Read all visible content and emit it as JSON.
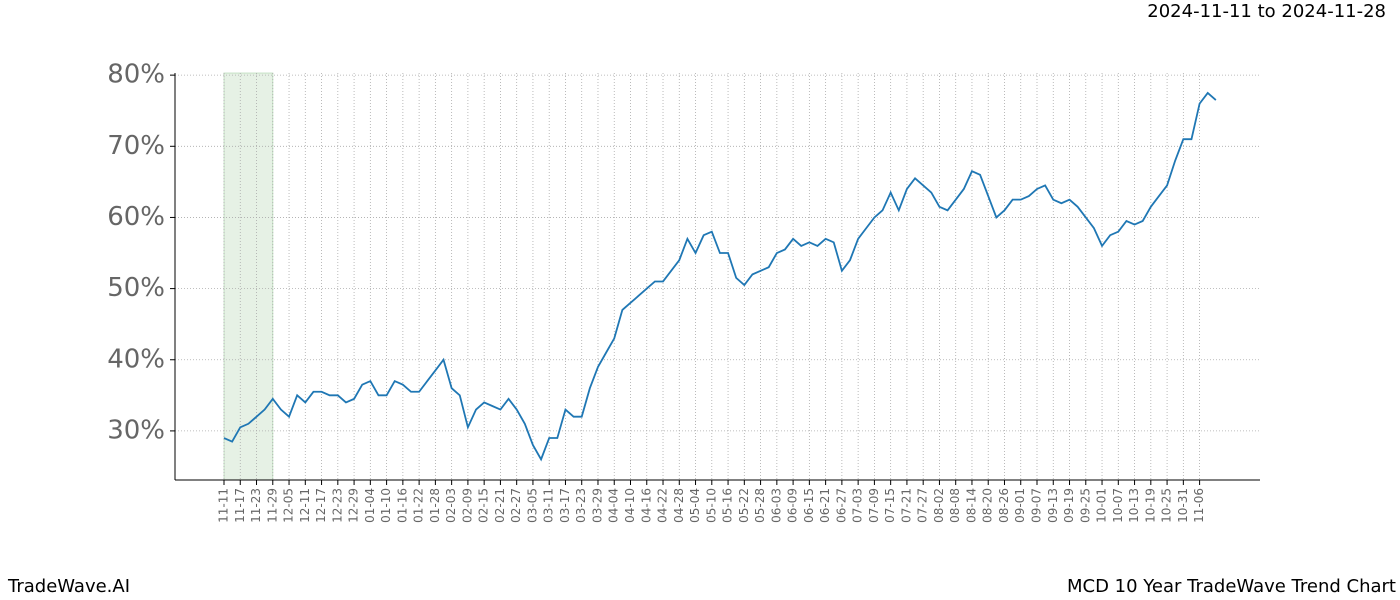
{
  "header": "2024-11-11 to 2024-11-28",
  "footer_left": "TradeWave.AI",
  "footer_right": "MCD 10 Year TradeWave Trend Chart",
  "chart_data": {
    "type": "line",
    "color": "#1f77b4",
    "grid": true,
    "shaded_span": [
      "11-11",
      "11-29"
    ],
    "shade_color": "#d5e8d4",
    "ylim": [
      23.1,
      80.3
    ],
    "yticks": [
      {
        "value": 30,
        "label": "30%"
      },
      {
        "value": 40,
        "label": "40%"
      },
      {
        "value": 50,
        "label": "50%"
      },
      {
        "value": 60,
        "label": "60%"
      },
      {
        "value": 70,
        "label": "70%"
      },
      {
        "value": 80,
        "label": "80%"
      }
    ],
    "categories": [
      "11-11",
      null,
      "11-17",
      null,
      "11-23",
      null,
      "11-29",
      null,
      "12-05",
      null,
      "12-11",
      null,
      "12-17",
      null,
      "12-23",
      null,
      "12-29",
      null,
      "01-04",
      null,
      "01-10",
      null,
      "01-16",
      null,
      "01-22",
      null,
      "01-28",
      null,
      "02-03",
      null,
      "02-09",
      null,
      "02-15",
      null,
      "02-21",
      null,
      "02-27",
      null,
      "03-05",
      null,
      "03-11",
      null,
      "03-17",
      null,
      "03-23",
      null,
      "03-29",
      null,
      "04-04",
      null,
      "04-10",
      null,
      "04-16",
      null,
      "04-22",
      null,
      "04-28",
      null,
      "05-04",
      null,
      "05-10",
      null,
      "05-16",
      null,
      "05-22",
      null,
      "05-28",
      null,
      "06-03",
      null,
      "06-09",
      null,
      "06-15",
      null,
      "06-21",
      null,
      "06-27",
      null,
      "07-03",
      null,
      "07-09",
      null,
      "07-15",
      null,
      "07-21",
      null,
      "07-27",
      null,
      "08-02",
      null,
      "08-08",
      null,
      "08-14",
      null,
      "08-20",
      null,
      "08-26",
      null,
      "09-01",
      null,
      "09-07",
      null,
      "09-13",
      null,
      "09-19",
      null,
      "09-25",
      null,
      "10-01",
      null,
      "10-07",
      null,
      "10-13",
      null,
      "10-19",
      null,
      "10-25",
      null,
      "10-31",
      null,
      "11-06",
      null,
      null
    ],
    "values": [
      29,
      28.5,
      30.5,
      31,
      32,
      33,
      34.5,
      33,
      32,
      35,
      34,
      35.5,
      35.5,
      35,
      35,
      34,
      34.5,
      36.5,
      37,
      35,
      35,
      37,
      36.5,
      35.5,
      35.5,
      37,
      38.5,
      40,
      36,
      35,
      30.5,
      33,
      34,
      33.5,
      33,
      34.5,
      33,
      31,
      28,
      26,
      29,
      29,
      33,
      32,
      32,
      36,
      39,
      41,
      43,
      47,
      48,
      49,
      50,
      51,
      51,
      52.5,
      54,
      57,
      55,
      57.5,
      58,
      55,
      55,
      51.5,
      50.5,
      52,
      52.5,
      53,
      55,
      55.5,
      57,
      56,
      56.5,
      56,
      57,
      56.5,
      52.5,
      54,
      57,
      58.5,
      60,
      61,
      63.5,
      61,
      64,
      65.5,
      64.5,
      63.5,
      61.5,
      61,
      62.5,
      64,
      66.5,
      66,
      63,
      60,
      61,
      62.5,
      62.5,
      63,
      64,
      64.5,
      62.5,
      62,
      62.5,
      61.5,
      60,
      58.5,
      56,
      57.5,
      58,
      59.5,
      59,
      59.5,
      61.5,
      63,
      64.5,
      68,
      71,
      71,
      76,
      77.5,
      76.5
    ]
  }
}
